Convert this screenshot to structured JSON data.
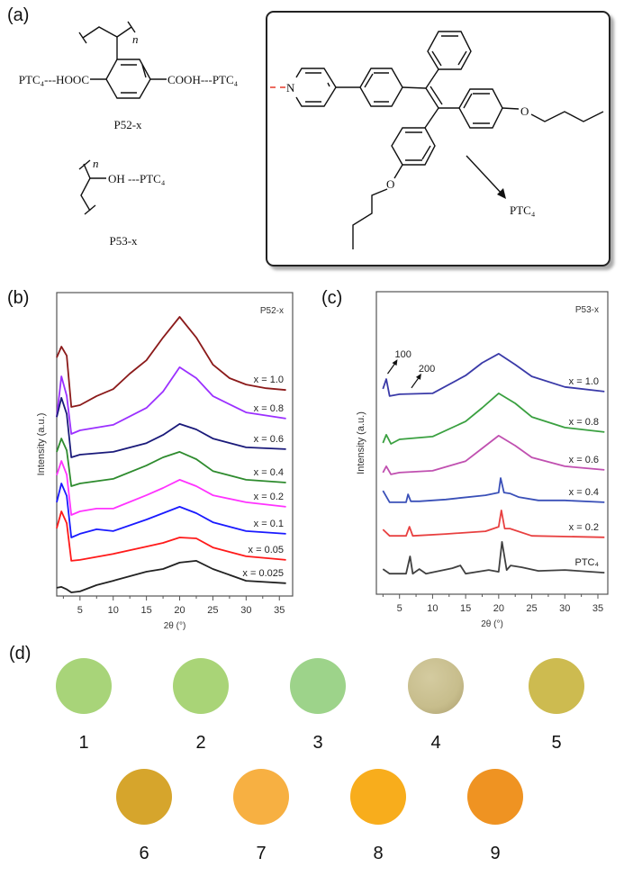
{
  "panels": {
    "a": "(a)",
    "b": "(b)",
    "c": "(c)",
    "d": "(d)"
  },
  "structures": {
    "p52": {
      "left": "PTC₄---HOOC",
      "right": "COOH---PTC₄",
      "n": "n",
      "name": "P52-x"
    },
    "p53": {
      "group": "OH ---PTC₄",
      "n": "n",
      "name": "P53-x"
    },
    "tpe": {
      "n_atom": "N",
      "o_atom": "O",
      "target": "PTC₄"
    }
  },
  "chart_data": [
    {
      "type": "line",
      "title": "P52-x",
      "xlabel": "2θ (°)",
      "ylabel": "Intensity (a.u.)",
      "xlim": [
        1.5,
        37
      ],
      "ylim": [
        0,
        100
      ],
      "xticks": [
        5,
        10,
        15,
        20,
        25,
        30,
        35
      ],
      "grid": false,
      "series": [
        {
          "name": "x = 1.0",
          "color": "#8b1a1a",
          "x": [
            1.5,
            2.2,
            3,
            3.7,
            5,
            7.5,
            10,
            12.5,
            15,
            17.5,
            20,
            22.5,
            25,
            27.5,
            30,
            33,
            36
          ],
          "y": [
            78.6,
            82.2,
            79.2,
            62.3,
            62.9,
            65.9,
            68.2,
            73.3,
            77.7,
            85.2,
            92,
            85.2,
            76.3,
            71.8,
            69.7,
            68.5,
            67.9
          ]
        },
        {
          "name": "x = 0.8",
          "color": "#9b30ff",
          "x": [
            1.5,
            2.2,
            3,
            3.7,
            5,
            10,
            15,
            17.5,
            20,
            22.5,
            25,
            30,
            36
          ],
          "y": [
            59,
            72.4,
            66,
            53.4,
            54.6,
            56.4,
            62,
            67.4,
            75.4,
            71.8,
            65.9,
            60.5,
            58.5
          ]
        },
        {
          "name": "x = 0.6",
          "color": "#1a1a7a",
          "x": [
            1.5,
            2.2,
            3,
            3.7,
            5,
            10,
            15,
            17.5,
            20,
            22.5,
            25,
            30,
            36
          ],
          "y": [
            59,
            65.3,
            60,
            45.7,
            46.6,
            47.5,
            50.4,
            53.1,
            56.7,
            54.9,
            51.9,
            49,
            48.4
          ]
        },
        {
          "name": "x = 0.4",
          "color": "#2e8b2e",
          "x": [
            1.5,
            2.2,
            3,
            3.7,
            5,
            10,
            15,
            17.5,
            20,
            22.5,
            25,
            30,
            36
          ],
          "y": [
            47.5,
            51.9,
            48,
            36.2,
            37.1,
            38.6,
            43,
            45.7,
            47.5,
            45.1,
            41.2,
            38.3,
            37.4
          ]
        },
        {
          "name": "x = 0.2",
          "color": "#ff33ff",
          "x": [
            1.5,
            2.2,
            3,
            3.7,
            5,
            7.5,
            10,
            15,
            17.5,
            20,
            22.5,
            25,
            30,
            36
          ],
          "y": [
            39.8,
            44.5,
            40,
            26.7,
            27.9,
            28.8,
            28.8,
            33.2,
            35.6,
            38.3,
            36.2,
            33.2,
            30.9,
            29.4
          ]
        },
        {
          "name": "x = 0.1",
          "color": "#1a1aff",
          "x": [
            1.5,
            2.2,
            3,
            3.7,
            5,
            7.5,
            10,
            15,
            17.5,
            20,
            22.5,
            25,
            30,
            36
          ],
          "y": [
            30.9,
            37.1,
            33,
            19.3,
            20.5,
            22,
            21.4,
            25.2,
            27.3,
            29.4,
            27.3,
            24.3,
            21.4,
            20.5
          ]
        },
        {
          "name": "x = 0.05",
          "color": "#ff1a1a",
          "x": [
            1.5,
            2.2,
            3,
            3.7,
            5,
            10,
            15,
            17.5,
            20,
            22.5,
            25,
            30,
            36
          ],
          "y": [
            22.3,
            27.9,
            24,
            11.6,
            11.9,
            13.9,
            16.3,
            17.5,
            19.3,
            19,
            16,
            13.1,
            11.9
          ]
        },
        {
          "name": "x = 0.025",
          "color": "#222222",
          "x": [
            1.5,
            2.2,
            3,
            3.7,
            5,
            7.5,
            10,
            15,
            17.5,
            20,
            22.5,
            25,
            30,
            36
          ],
          "y": [
            2.7,
            3,
            2.2,
            1.2,
            1.5,
            3.6,
            5,
            8,
            8.9,
            11,
            11.6,
            8.9,
            5,
            4.2
          ]
        }
      ]
    },
    {
      "type": "line",
      "title": "P53-x",
      "xlabel": "2θ (°)",
      "ylabel": "Intensity (a.u.)",
      "xlim": [
        1.5,
        36.5
      ],
      "ylim": [
        0,
        100
      ],
      "xticks": [
        5,
        10,
        15,
        20,
        25,
        30,
        35
      ],
      "grid": false,
      "annotations": [
        {
          "text": "100",
          "x": 3.2
        },
        {
          "text": "200",
          "x": 6.8
        }
      ],
      "series": [
        {
          "name": "x = 1.0",
          "color": "#3a3aa8",
          "x": [
            2.5,
            3,
            3.5,
            5,
            10,
            15,
            17.5,
            20,
            22.5,
            25,
            30,
            36
          ],
          "y": [
            67.9,
            71.1,
            65.5,
            66.1,
            66.4,
            72.3,
            76.5,
            79.5,
            75.9,
            72,
            68.5,
            67
          ]
        },
        {
          "name": "x = 0.8",
          "color": "#3aa040",
          "x": [
            2.5,
            3,
            3.7,
            5,
            10,
            15,
            17.5,
            20,
            22.5,
            25,
            30,
            36
          ],
          "y": [
            50,
            52.7,
            49.7,
            51.2,
            52.1,
            57.1,
            61.6,
            66.4,
            63.1,
            58.6,
            55.1,
            53.6
          ]
        },
        {
          "name": "x = 0.6",
          "color": "#c050b0",
          "x": [
            2.5,
            3,
            3.7,
            5,
            10,
            15,
            17.5,
            20,
            22.5,
            25,
            30,
            36
          ],
          "y": [
            40.2,
            42.3,
            39.6,
            40.2,
            40.8,
            44,
            48.2,
            52.4,
            49.1,
            45.2,
            42.3,
            41.1
          ]
        },
        {
          "name": "x = 0.4",
          "color": "#3a50b8",
          "x": [
            2.5,
            3.5,
            6,
            6.3,
            6.7,
            8,
            12,
            14,
            18,
            20,
            20.3,
            20.8,
            21.7,
            23,
            26,
            30,
            36
          ],
          "y": [
            34.2,
            30.4,
            30.4,
            33,
            30.7,
            30.7,
            31.3,
            31.8,
            32.7,
            33.6,
            38.4,
            33.6,
            33.3,
            32.1,
            31,
            31,
            30.4
          ]
        },
        {
          "name": "x = 0.2",
          "color": "#e84040",
          "x": [
            2.5,
            3.5,
            6,
            6.5,
            7,
            12,
            18,
            20,
            20.4,
            20.9,
            21.7,
            25,
            36
          ],
          "y": [
            21.4,
            19.3,
            19.3,
            22.3,
            19.3,
            19.9,
            20.8,
            22.3,
            27.7,
            21.7,
            21.7,
            19.3,
            18.8
          ]
        },
        {
          "name": "PTC₄",
          "color": "#404040",
          "x": [
            2.5,
            3.5,
            6,
            6.6,
            7,
            8,
            9,
            11.7,
            13,
            14.2,
            15,
            18.5,
            20,
            20.5,
            21.2,
            21.8,
            23.5,
            26,
            30,
            36
          ],
          "y": [
            8.3,
            6.8,
            6.8,
            12.5,
            6.8,
            8.3,
            6.8,
            8,
            8.6,
            9.5,
            6.8,
            8,
            7.4,
            17.3,
            8,
            9.5,
            8.9,
            7.7,
            8,
            7.1
          ]
        }
      ]
    }
  ],
  "samples": [
    {
      "label": "1",
      "color": "#a8d479"
    },
    {
      "label": "2",
      "color": "#a9d477"
    },
    {
      "label": "3",
      "color": "#9dd38a"
    },
    {
      "label": "4",
      "color": "#c7bd8c"
    },
    {
      "label": "5",
      "color": "#cdbb50"
    },
    {
      "label": "6",
      "color": "#d6a52c"
    },
    {
      "label": "7",
      "color": "#f7b042"
    },
    {
      "label": "8",
      "color": "#f8ad1c"
    },
    {
      "label": "9",
      "color": "#ef9322"
    }
  ]
}
